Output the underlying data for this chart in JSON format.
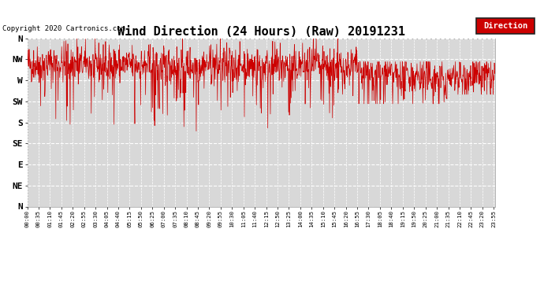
{
  "title": "Wind Direction (24 Hours) (Raw) 20191231",
  "copyright": "Copyright 2020 Cartronics.com",
  "legend_label": "Direction",
  "legend_bg": "#cc0000",
  "legend_text_color": "#ffffff",
  "line_color": "#cc0000",
  "bg_color": "#ffffff",
  "plot_bg_color": "#d8d8d8",
  "grid_color": "#ffffff",
  "ytick_labels": [
    "N",
    "NW",
    "W",
    "SW",
    "S",
    "SE",
    "E",
    "NE",
    "N"
  ],
  "ytick_values": [
    360,
    315,
    270,
    225,
    180,
    135,
    90,
    45,
    0
  ],
  "ylim": [
    0,
    360
  ],
  "title_fontsize": 11,
  "seed": 42
}
